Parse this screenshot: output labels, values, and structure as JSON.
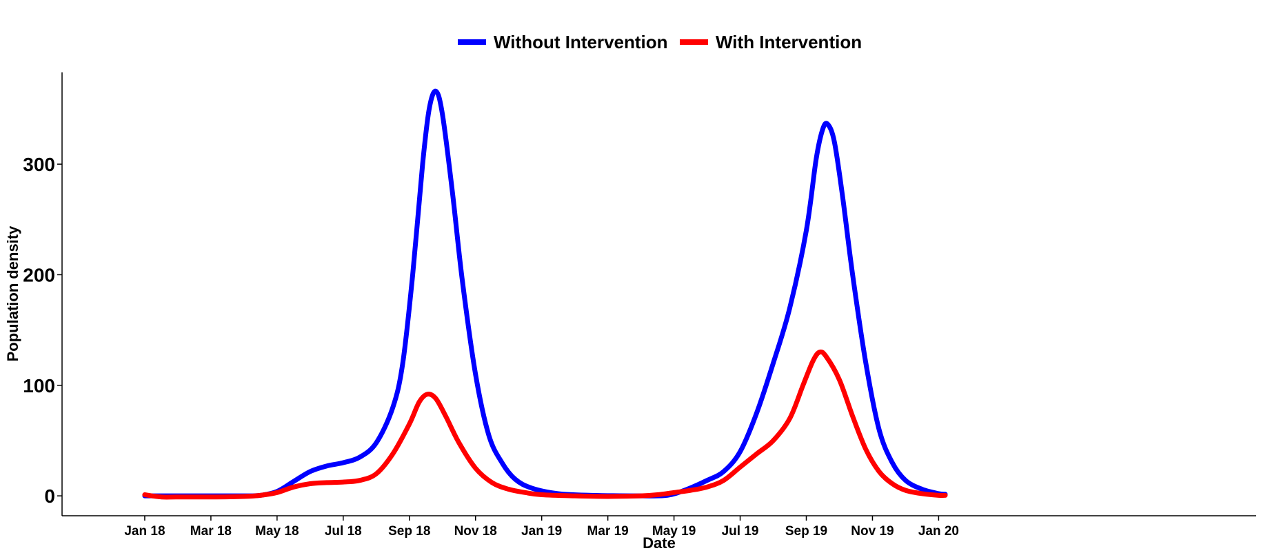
{
  "chart_data": {
    "type": "line",
    "title": "",
    "xlabel": "Date",
    "ylabel": "Population density",
    "ylim": [
      -18,
      383
    ],
    "xlim": [
      -2.5,
      33.6
    ],
    "y_ticks": [
      0,
      100,
      200,
      300
    ],
    "x_ticks": [
      {
        "label": "Jan 18",
        "month_index": 0
      },
      {
        "label": "Mar 18",
        "month_index": 2
      },
      {
        "label": "May 18",
        "month_index": 4
      },
      {
        "label": "Jul 18",
        "month_index": 6
      },
      {
        "label": "Sep 18",
        "month_index": 8
      },
      {
        "label": "Nov 18",
        "month_index": 10
      },
      {
        "label": "Jan 19",
        "month_index": 12
      },
      {
        "label": "Mar 19",
        "month_index": 14
      },
      {
        "label": "May 19",
        "month_index": 16
      },
      {
        "label": "Jul 19",
        "month_index": 18
      },
      {
        "label": "Sep 19",
        "month_index": 20
      },
      {
        "label": "Nov 19",
        "month_index": 22
      },
      {
        "label": "Jan 20",
        "month_index": 24
      }
    ],
    "legend_position": "top",
    "series": [
      {
        "name": "Without Intervention",
        "color": "#0000ff",
        "points": [
          [
            0,
            0
          ],
          [
            1,
            0
          ],
          [
            2,
            0
          ],
          [
            3,
            0
          ],
          [
            3.5,
            0.5
          ],
          [
            4,
            4
          ],
          [
            4.5,
            13
          ],
          [
            5,
            22
          ],
          [
            5.5,
            27
          ],
          [
            6,
            30
          ],
          [
            6.5,
            35
          ],
          [
            7,
            48
          ],
          [
            7.5,
            80
          ],
          [
            7.8,
            120
          ],
          [
            8.1,
            200
          ],
          [
            8.4,
            300
          ],
          [
            8.6,
            350
          ],
          [
            8.8,
            366
          ],
          [
            9.0,
            345
          ],
          [
            9.3,
            275
          ],
          [
            9.6,
            195
          ],
          [
            10.0,
            110
          ],
          [
            10.4,
            55
          ],
          [
            10.8,
            30
          ],
          [
            11.2,
            15
          ],
          [
            11.7,
            7
          ],
          [
            12.5,
            2
          ],
          [
            13.5,
            0.5
          ],
          [
            15,
            0
          ],
          [
            15.8,
            0.5
          ],
          [
            16.4,
            6
          ],
          [
            17,
            14
          ],
          [
            17.5,
            22
          ],
          [
            18,
            40
          ],
          [
            18.5,
            75
          ],
          [
            19,
            120
          ],
          [
            19.5,
            170
          ],
          [
            20,
            240
          ],
          [
            20.3,
            305
          ],
          [
            20.5,
            332
          ],
          [
            20.65,
            336
          ],
          [
            20.85,
            320
          ],
          [
            21.1,
            270
          ],
          [
            21.4,
            200
          ],
          [
            21.8,
            120
          ],
          [
            22.2,
            60
          ],
          [
            22.6,
            30
          ],
          [
            23.0,
            14
          ],
          [
            23.5,
            6
          ],
          [
            24.0,
            2
          ],
          [
            24.2,
            1.5
          ]
        ]
      },
      {
        "name": "With Intervention",
        "color": "#ff0000",
        "points": [
          [
            0,
            1
          ],
          [
            0.5,
            -1
          ],
          [
            1,
            -1
          ],
          [
            2,
            -1
          ],
          [
            3,
            -0.5
          ],
          [
            3.5,
            0.5
          ],
          [
            4,
            3
          ],
          [
            4.5,
            8
          ],
          [
            5,
            11
          ],
          [
            5.5,
            12
          ],
          [
            6,
            12.5
          ],
          [
            6.5,
            14
          ],
          [
            7,
            20
          ],
          [
            7.5,
            38
          ],
          [
            8,
            65
          ],
          [
            8.3,
            85
          ],
          [
            8.55,
            92
          ],
          [
            8.8,
            88
          ],
          [
            9.1,
            72
          ],
          [
            9.5,
            48
          ],
          [
            10,
            25
          ],
          [
            10.5,
            12
          ],
          [
            11,
            6
          ],
          [
            11.5,
            3
          ],
          [
            12,
            1
          ],
          [
            13,
            0
          ],
          [
            14,
            -0.5
          ],
          [
            15,
            0
          ],
          [
            15.5,
            1
          ],
          [
            16,
            3
          ],
          [
            16.5,
            5
          ],
          [
            17,
            8
          ],
          [
            17.5,
            14
          ],
          [
            18,
            26
          ],
          [
            18.5,
            38
          ],
          [
            19,
            50
          ],
          [
            19.5,
            70
          ],
          [
            19.9,
            100
          ],
          [
            20.2,
            122
          ],
          [
            20.4,
            130
          ],
          [
            20.6,
            126
          ],
          [
            21,
            105
          ],
          [
            21.4,
            72
          ],
          [
            21.8,
            42
          ],
          [
            22.2,
            22
          ],
          [
            22.6,
            11
          ],
          [
            23,
            5
          ],
          [
            23.5,
            2
          ],
          [
            24.0,
            0.5
          ],
          [
            24.2,
            0.5
          ]
        ]
      }
    ]
  }
}
